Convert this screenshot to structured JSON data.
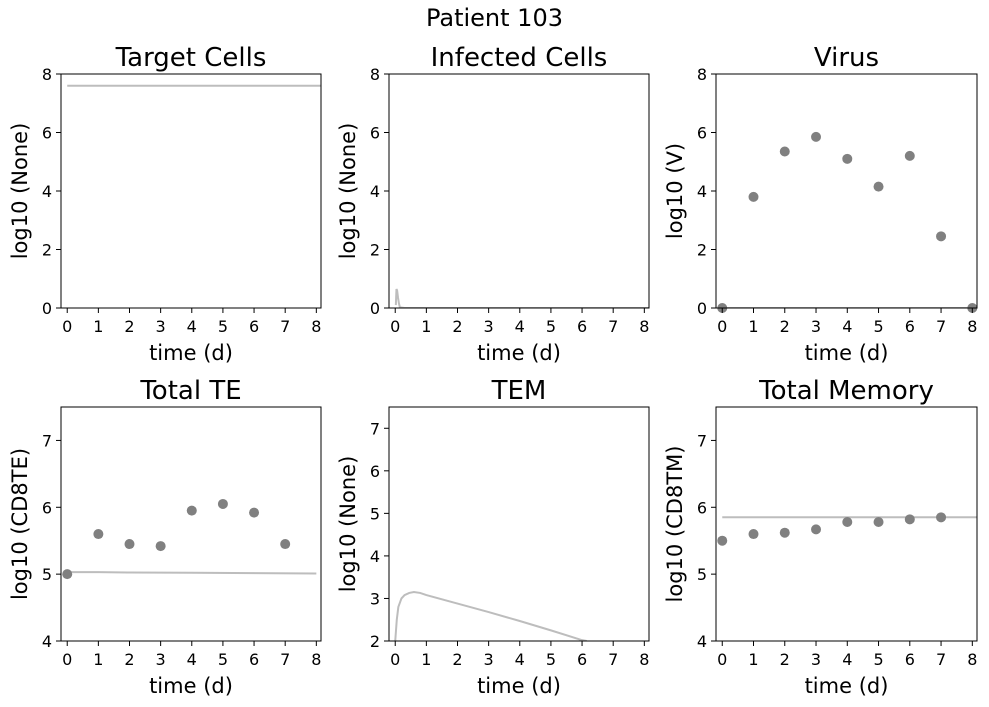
{
  "figure_title": "Patient 103",
  "colors": {
    "model_line": "#bdbdbd",
    "data_points": "#808080"
  },
  "chart_data": [
    {
      "type": "scatter",
      "title": "Target Cells",
      "xlabel": "time (d)",
      "ylabel": "log10 (None)",
      "xlim": [
        -0.2,
        8.15
      ],
      "ylim": [
        0,
        8
      ],
      "xticks": [
        0,
        1,
        2,
        3,
        4,
        5,
        6,
        7,
        8
      ],
      "yticks": [
        0,
        2,
        4,
        6,
        8
      ],
      "grid": false,
      "model": {
        "x": [
          0,
          8.15
        ],
        "y": [
          7.6,
          7.6
        ]
      },
      "points": {
        "x": [],
        "y": []
      }
    },
    {
      "type": "scatter",
      "title": "Infected Cells",
      "xlabel": "time (d)",
      "ylabel": "log10 (None)",
      "xlim": [
        -0.2,
        8.15
      ],
      "ylim": [
        0,
        8
      ],
      "xticks": [
        0,
        1,
        2,
        3,
        4,
        5,
        6,
        7,
        8
      ],
      "yticks": [
        0,
        2,
        4,
        6,
        8
      ],
      "grid": false,
      "model": {
        "x": [
          0.02,
          0.04,
          0.06,
          0.09,
          0.12,
          0.15,
          0.3,
          1,
          8.15
        ],
        "y": [
          0.1,
          0.65,
          0.6,
          0.35,
          0.15,
          0.02,
          0,
          0,
          0
        ]
      },
      "points": {
        "x": [],
        "y": []
      }
    },
    {
      "type": "scatter",
      "title": "Virus",
      "xlabel": "time (d)",
      "ylabel": "log10 (V)",
      "xlim": [
        -0.2,
        8.15
      ],
      "ylim": [
        0,
        8
      ],
      "xticks": [
        0,
        1,
        2,
        3,
        4,
        5,
        6,
        7,
        8
      ],
      "yticks": [
        0,
        2,
        4,
        6,
        8
      ],
      "grid": false,
      "model": {
        "x": [
          0,
          8.15
        ],
        "y": [
          0,
          0
        ]
      },
      "points": {
        "x": [
          0,
          1,
          2,
          3,
          4,
          5,
          6,
          7,
          8
        ],
        "y": [
          0,
          3.8,
          5.35,
          5.85,
          5.1,
          4.15,
          5.2,
          2.45,
          0
        ]
      }
    },
    {
      "type": "scatter",
      "title": "Total TE",
      "xlabel": "time (d)",
      "ylabel": "log10 (CD8TE)",
      "xlim": [
        -0.2,
        8.15
      ],
      "ylim": [
        4,
        7.5
      ],
      "xticks": [
        0,
        1,
        2,
        3,
        4,
        5,
        6,
        7,
        8
      ],
      "yticks": [
        4,
        5,
        6,
        7
      ],
      "grid": false,
      "model": {
        "x": [
          0,
          1,
          2,
          4,
          6,
          8
        ],
        "y": [
          5.03,
          5.03,
          5.025,
          5.02,
          5.015,
          5.01
        ]
      },
      "points": {
        "x": [
          0,
          1,
          2,
          3,
          4,
          5,
          6,
          7
        ],
        "y": [
          5.0,
          5.6,
          5.45,
          5.42,
          5.95,
          6.05,
          5.92,
          5.45
        ]
      }
    },
    {
      "type": "scatter",
      "title": "TEM",
      "xlabel": "time (d)",
      "ylabel": "log10 (None)",
      "xlim": [
        -0.2,
        8.15
      ],
      "ylim": [
        2,
        7.5
      ],
      "xticks": [
        0,
        1,
        2,
        3,
        4,
        5,
        6,
        7,
        8
      ],
      "yticks": [
        2,
        3,
        4,
        5,
        6,
        7
      ],
      "grid": false,
      "model": {
        "x": [
          0,
          0.05,
          0.1,
          0.2,
          0.3,
          0.45,
          0.6,
          0.8,
          1,
          2,
          3,
          4,
          5,
          6,
          6.15
        ],
        "y": [
          2.0,
          2.5,
          2.8,
          3.0,
          3.08,
          3.13,
          3.15,
          3.13,
          3.08,
          2.88,
          2.68,
          2.47,
          2.25,
          2.02,
          2.0
        ]
      },
      "points": {
        "x": [],
        "y": []
      }
    },
    {
      "type": "scatter",
      "title": "Total Memory",
      "xlabel": "time (d)",
      "ylabel": "log10 (CD8TM)",
      "xlim": [
        -0.2,
        8.15
      ],
      "ylim": [
        4,
        7.5
      ],
      "xticks": [
        0,
        1,
        2,
        3,
        4,
        5,
        6,
        7,
        8
      ],
      "yticks": [
        4,
        5,
        6,
        7
      ],
      "grid": false,
      "model": {
        "x": [
          0,
          8.15
        ],
        "y": [
          5.85,
          5.85
        ]
      },
      "points": {
        "x": [
          0,
          1,
          2,
          3,
          4,
          5,
          6,
          7
        ],
        "y": [
          5.5,
          5.6,
          5.62,
          5.67,
          5.78,
          5.78,
          5.82,
          5.85
        ]
      }
    }
  ]
}
